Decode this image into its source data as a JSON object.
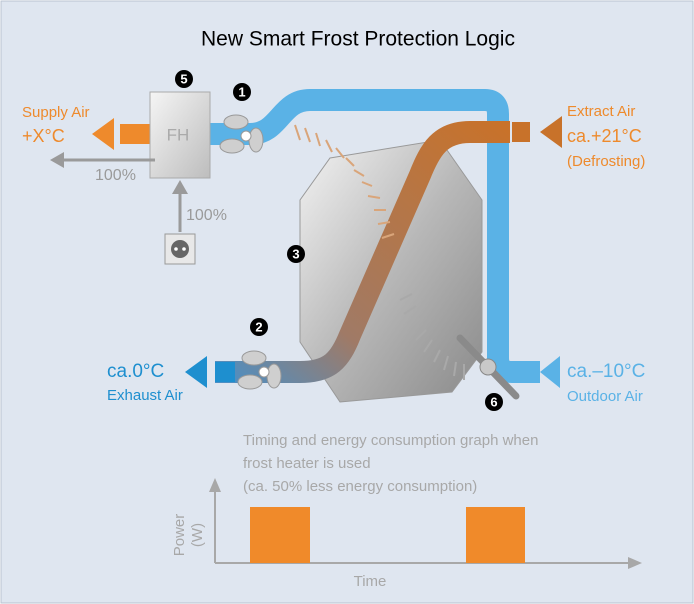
{
  "title": "New Smart Frost Protection Logic",
  "supply": {
    "label": "Supply Air",
    "temp": "+X°C",
    "flow": "100%"
  },
  "heater": {
    "label": "FH",
    "power": "100%"
  },
  "extract": {
    "label": "Extract Air",
    "temp": "ca.+21°C",
    "note": "(Defrosting)"
  },
  "exhaust": {
    "temp": "ca.0°C",
    "label": "Exhaust Air"
  },
  "outdoor": {
    "temp": "ca.–10°C",
    "label": "Outdoor Air"
  },
  "markers": [
    "1",
    "2",
    "3",
    "5",
    "6"
  ],
  "graph": {
    "caption": [
      "Timing and energy consumption graph when",
      "frost heater is used",
      "(ca. 50% less energy consumption)"
    ],
    "y_label": [
      "Power",
      "(W)"
    ],
    "x_label": "Time"
  }
}
